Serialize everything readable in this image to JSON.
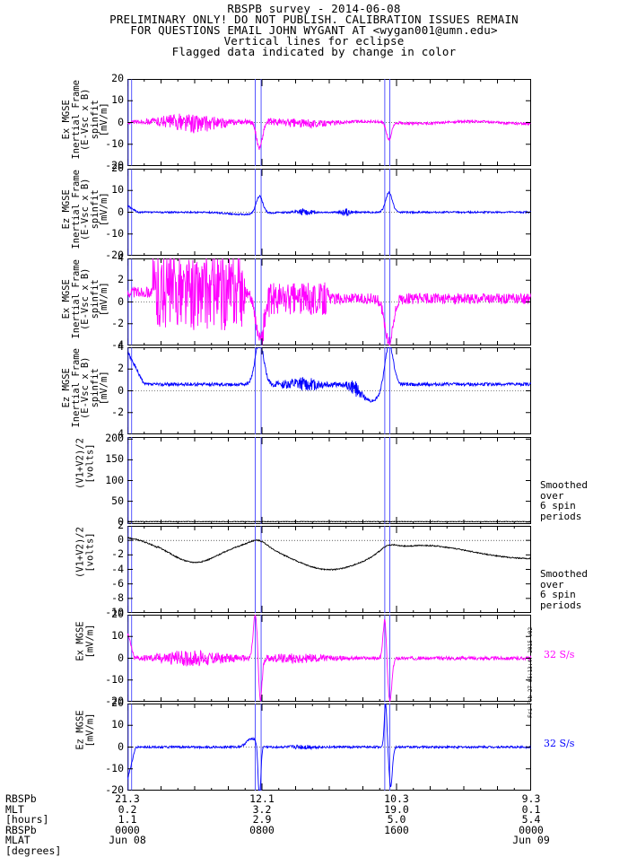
{
  "header": {
    "title": "RBSPB survey - 2014-06-08",
    "line2": "PRELIMINARY ONLY! DO NOT PUBLISH. CALIBRATION ISSUES REMAIN",
    "line3": "FOR QUESTIONS EMAIL JOHN WYGANT AT <wygan001@umn.edu>",
    "line4": "Vertical lines for eclipse",
    "line5": "Flagged data indicated by change in color"
  },
  "colors": {
    "magenta": "#ff00ff",
    "blue": "#0000ff",
    "black": "#000000",
    "eclipse": "#5555ff"
  },
  "eclipse_hours": [
    [
      0.05,
      0.25
    ],
    [
      7.6,
      7.95
    ],
    [
      15.3,
      15.6
    ]
  ],
  "chart_data": [
    {
      "type": "line",
      "ylabel": "Ex MGSE\nInertial Frame\n(E-Vsc x B)\nspinfit\n[mV/m]",
      "ylim": [
        -20,
        20
      ],
      "yticks": [
        "20",
        "10",
        "0",
        "-10",
        "-20"
      ],
      "tickvals": [
        20,
        10,
        0,
        -10,
        -20
      ],
      "color": "magenta",
      "kind": "ex_full",
      "annotation": ""
    },
    {
      "type": "line",
      "ylabel": "Ez MGSE\nInertial Frame\n(E-Vsc x B)\nspinfit\n[mV/m]",
      "ylim": [
        -20,
        20
      ],
      "yticks": [
        "20",
        "10",
        "0",
        "-10",
        "-20"
      ],
      "tickvals": [
        20,
        10,
        0,
        -10,
        -20
      ],
      "color": "blue",
      "kind": "ez_full",
      "annotation": ""
    },
    {
      "type": "line",
      "ylabel": "Ex MGSE\nInertial Frame\n(E-Vsc x B)\nspinfit\n[mV/m]",
      "ylim": [
        -4,
        4
      ],
      "yticks": [
        "4",
        "2",
        "0",
        "-2",
        "-4"
      ],
      "tickvals": [
        4,
        2,
        0,
        -2,
        -4
      ],
      "color": "magenta",
      "kind": "ex_zoom",
      "annotation": ""
    },
    {
      "type": "line",
      "ylabel": "Ez MGSE\nInertial Frame\n(E-Vsc x B)\nspinfit\n[mV/m]",
      "ylim": [
        -4,
        4
      ],
      "yticks": [
        "4",
        "2",
        "0",
        "-2",
        "-4"
      ],
      "tickvals": [
        4,
        2,
        0,
        -2,
        -4
      ],
      "color": "blue",
      "kind": "ez_zoom",
      "annotation": ""
    },
    {
      "type": "line",
      "ylabel": "(V1+V2)/2\n[volts]",
      "ylim": [
        -5,
        205
      ],
      "yticks": [
        "200",
        "150",
        "100",
        "50",
        "0"
      ],
      "tickvals": [
        200,
        150,
        100,
        50,
        0
      ],
      "color": "black",
      "kind": "vsc_full",
      "annotation": "Smoothed\nover\n6 spin\nperiods"
    },
    {
      "type": "line",
      "ylabel": "(V1+V2)/2\n[volts]",
      "ylim": [
        -10,
        2
      ],
      "yticks": [
        "2",
        "0",
        "-2",
        "-4",
        "-6",
        "-8",
        "-10"
      ],
      "tickvals": [
        2,
        0,
        -2,
        -4,
        -6,
        -8,
        -10
      ],
      "color": "black",
      "kind": "vsc_zoom",
      "annotation": "Smoothed\nover\n6 spin\nperiods"
    },
    {
      "type": "line",
      "ylabel": "Ex MGSE\n[mV/m]",
      "ylim": [
        -20,
        20
      ],
      "yticks": [
        "20",
        "10",
        "0",
        "-10",
        "-20"
      ],
      "tickvals": [
        20,
        10,
        0,
        -10,
        -20
      ],
      "color": "magenta",
      "kind": "ex_32",
      "annotation": "32 S/s"
    },
    {
      "type": "line",
      "ylabel": "Ez MGSE\n[mV/m]",
      "ylim": [
        -20,
        20
      ],
      "yticks": [
        "20",
        "10",
        "0",
        "-10",
        "-20"
      ],
      "tickvals": [
        20,
        10,
        0,
        -10,
        -20
      ],
      "color": "blue",
      "kind": "ez_32",
      "annotation": "32 S/s"
    }
  ],
  "footer": {
    "labels": "RBSPb\nMLT\n[hours]\nRBSPb\nMLAT\n[degrees]",
    "columns": [
      {
        "hour": 0,
        "text": "21.3\n0.2\n1.1\n0000\nJun 08"
      },
      {
        "hour": 8,
        "text": "12.1\n3.2\n2.9\n0800"
      },
      {
        "hour": 16,
        "text": "10.3\n19.0\n5.0\n1600"
      },
      {
        "hour": 24,
        "text": "9.3\n0.1\n5.4\n0000\nJun 09"
      }
    ],
    "credit": "Fri Feb 27 05:13:47 2015 v02"
  }
}
